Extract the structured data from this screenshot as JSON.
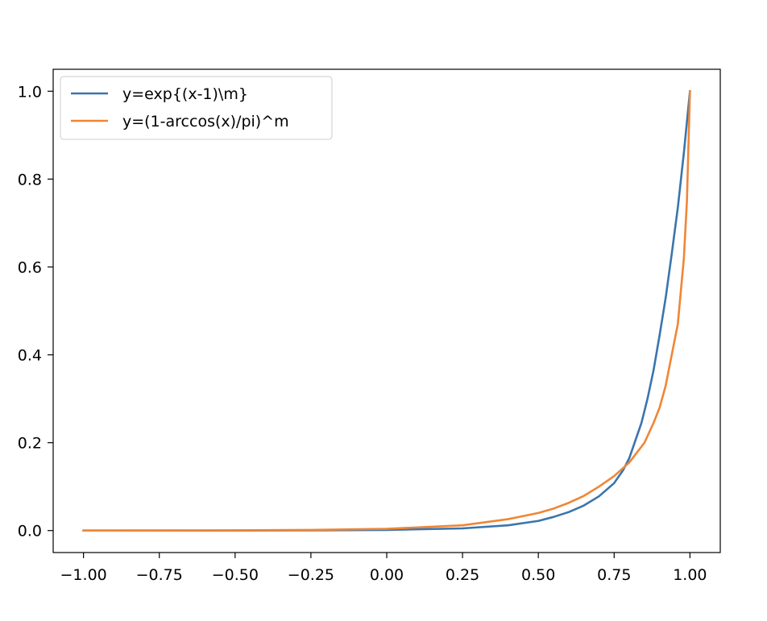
{
  "chart_data": {
    "type": "line",
    "title": "",
    "xlabel": "",
    "ylabel": "",
    "xlim": [
      -1.1,
      1.1
    ],
    "ylim": [
      -0.05,
      1.05
    ],
    "xticks": [
      -1.0,
      -0.75,
      -0.5,
      -0.25,
      0.0,
      0.25,
      0.5,
      0.75,
      1.0
    ],
    "xtick_labels": [
      "−1.00",
      "−0.75",
      "−0.50",
      "−0.25",
      "0.00",
      "0.25",
      "0.50",
      "0.75",
      "1.00"
    ],
    "yticks": [
      0.0,
      0.2,
      0.4,
      0.6,
      0.8,
      1.0
    ],
    "ytick_labels": [
      "0.0",
      "0.2",
      "0.4",
      "0.6",
      "0.8",
      "1.0"
    ],
    "grid": false,
    "legend_position": "upper-left",
    "series": [
      {
        "name": "y=exp{(x-1)\\m}",
        "color": "#3a75ad",
        "x": [
          -1.0,
          -0.5,
          -0.25,
          0.0,
          0.25,
          0.4,
          0.5,
          0.55,
          0.6,
          0.65,
          0.7,
          0.75,
          0.78,
          0.8,
          0.82,
          0.84,
          0.86,
          0.88,
          0.9,
          0.92,
          0.94,
          0.96,
          0.98,
          1.0
        ],
        "y": [
          0.0,
          0.0,
          0.0005,
          0.0015,
          0.005,
          0.012,
          0.022,
          0.031,
          0.042,
          0.057,
          0.078,
          0.108,
          0.138,
          0.165,
          0.205,
          0.245,
          0.3,
          0.365,
          0.445,
          0.53,
          0.63,
          0.735,
          0.86,
          1.0
        ]
      },
      {
        "name": "y=(1-arccos(x)/pi)^m",
        "color": "#ef8636",
        "x": [
          -1.0,
          -0.5,
          -0.25,
          0.0,
          0.25,
          0.4,
          0.5,
          0.55,
          0.6,
          0.65,
          0.7,
          0.75,
          0.8,
          0.85,
          0.88,
          0.9,
          0.92,
          0.94,
          0.96,
          0.98,
          0.99,
          1.0
        ],
        "y": [
          0.0,
          0.0005,
          0.0015,
          0.004,
          0.012,
          0.026,
          0.04,
          0.05,
          0.063,
          0.079,
          0.1,
          0.124,
          0.155,
          0.2,
          0.245,
          0.28,
          0.33,
          0.4,
          0.47,
          0.62,
          0.75,
          1.0
        ]
      }
    ]
  }
}
